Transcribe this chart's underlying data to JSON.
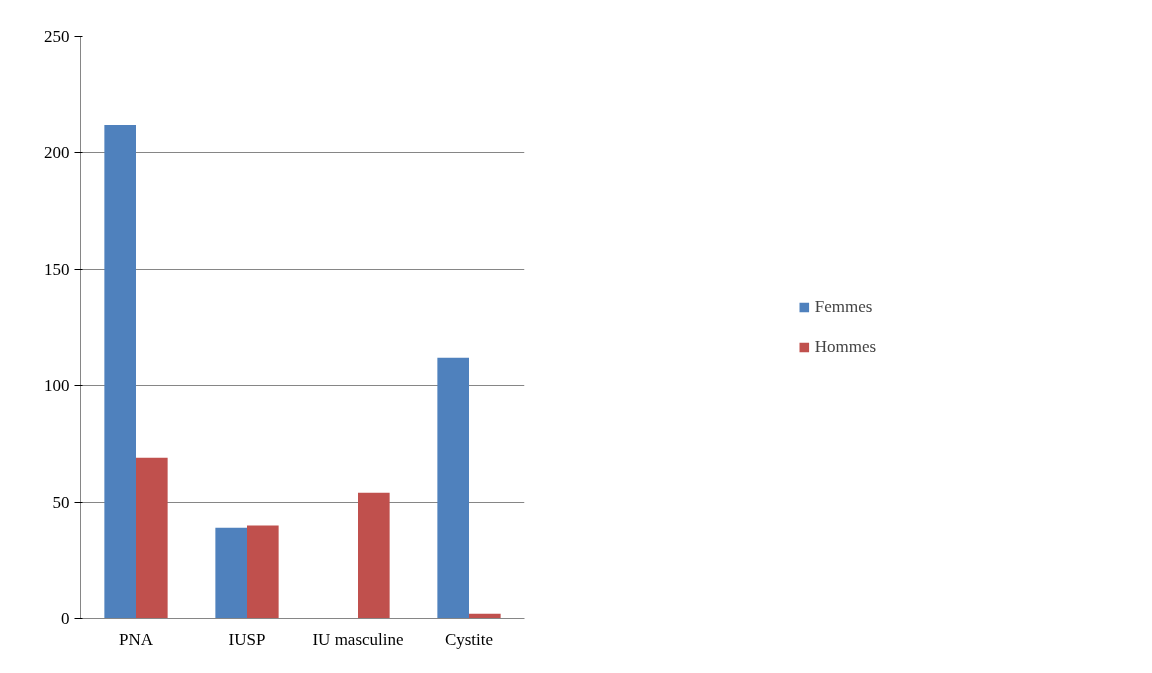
{
  "chart_data": {
    "type": "bar",
    "categories": [
      "PNA",
      "IUSP",
      "IU masculine",
      "Cystite"
    ],
    "series": [
      {
        "name": "Femmes",
        "color": "#4f81bd",
        "values": [
          212,
          39,
          0,
          112
        ]
      },
      {
        "name": "Hommes",
        "color": "#c0504d",
        "values": [
          69,
          40,
          54,
          2
        ]
      }
    ],
    "ylim": [
      0,
      250
    ],
    "yticks": [
      0,
      50,
      100,
      150,
      200,
      250
    ],
    "grid": "y",
    "legend": "right"
  }
}
